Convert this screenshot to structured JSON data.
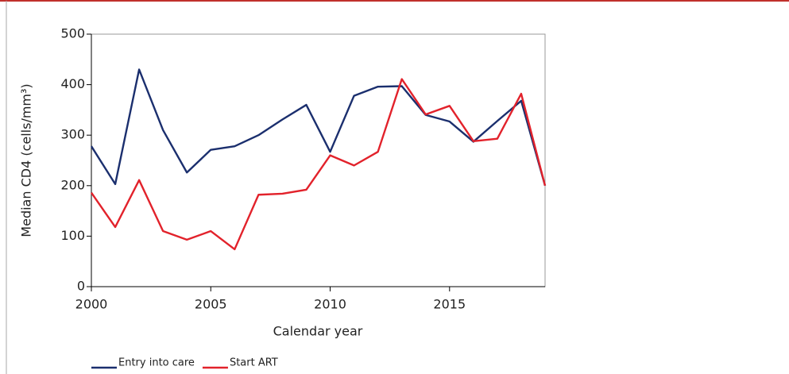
{
  "chart_data": {
    "type": "line",
    "x": [
      2000,
      2001,
      2002,
      2003,
      2004,
      2005,
      2006,
      2007,
      2008,
      2009,
      2010,
      2011,
      2012,
      2013,
      2014,
      2015,
      2016,
      2017,
      2018,
      2019
    ],
    "series": [
      {
        "name": "Entry into care",
        "color": "#1b2f6e",
        "values": [
          278,
          203,
          430,
          310,
          226,
          271,
          278,
          300,
          331,
          360,
          267,
          378,
          396,
          397,
          340,
          327,
          287,
          328,
          368,
          200
        ]
      },
      {
        "name": "Start ART",
        "color": "#e2222b",
        "values": [
          186,
          118,
          211,
          110,
          93,
          110,
          74,
          182,
          184,
          192,
          260,
          240,
          267,
          411,
          341,
          358,
          288,
          293,
          382,
          200
        ]
      }
    ],
    "x_label": "Calendar year",
    "y_label": "Median CD4 (cells/mm³)",
    "xlim": [
      2000,
      2019
    ],
    "xticks": [
      2000,
      2005,
      2010,
      2015
    ],
    "ylim": [
      0,
      500
    ],
    "yticks": [
      0,
      100,
      200,
      300,
      400,
      500
    ],
    "legend": "bottom-left"
  }
}
